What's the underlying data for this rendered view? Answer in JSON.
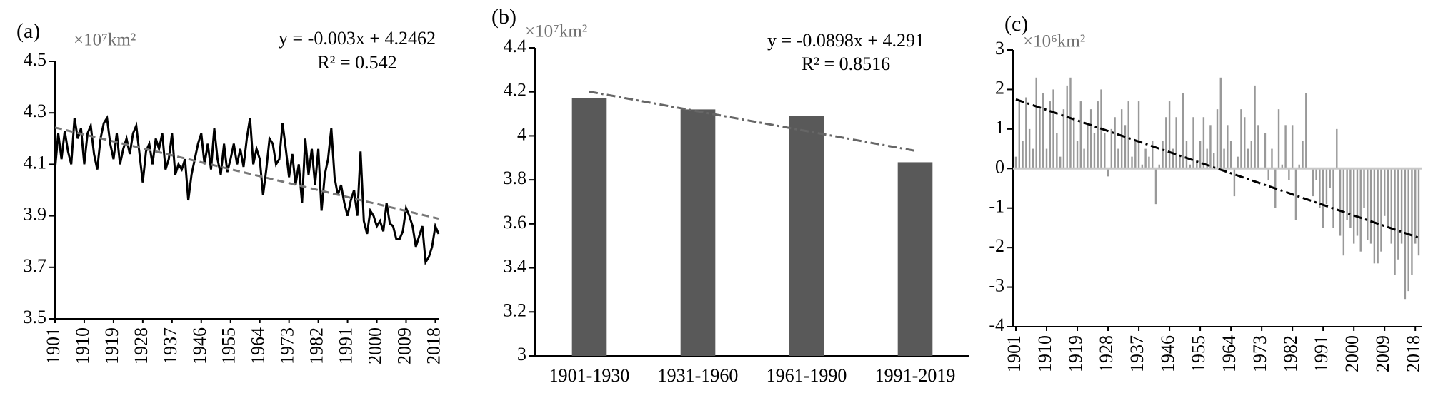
{
  "chart_data": [
    {
      "type": "line",
      "label": "(a)",
      "unit": "×10⁷km²",
      "equation": "y = -0.003x + 4.2462",
      "r_squared": "R² = 0.542",
      "x": [
        1901,
        1902,
        1903,
        1904,
        1905,
        1906,
        1907,
        1908,
        1909,
        1910,
        1911,
        1912,
        1913,
        1914,
        1915,
        1916,
        1917,
        1918,
        1919,
        1920,
        1921,
        1922,
        1923,
        1924,
        1925,
        1926,
        1927,
        1928,
        1929,
        1930,
        1931,
        1932,
        1933,
        1934,
        1935,
        1936,
        1937,
        1938,
        1939,
        1940,
        1941,
        1942,
        1943,
        1944,
        1945,
        1946,
        1947,
        1948,
        1949,
        1950,
        1951,
        1952,
        1953,
        1954,
        1955,
        1956,
        1957,
        1958,
        1959,
        1960,
        1961,
        1962,
        1963,
        1964,
        1965,
        1966,
        1967,
        1968,
        1969,
        1970,
        1971,
        1972,
        1973,
        1974,
        1975,
        1976,
        1977,
        1978,
        1979,
        1980,
        1981,
        1982,
        1983,
        1984,
        1985,
        1986,
        1987,
        1988,
        1989,
        1990,
        1991,
        1992,
        1993,
        1994,
        1995,
        1996,
        1997,
        1998,
        1999,
        2000,
        2001,
        2002,
        2003,
        2004,
        2005,
        2006,
        2007,
        2008,
        2009,
        2010,
        2011,
        2012,
        2013,
        2014,
        2015,
        2016,
        2017,
        2018,
        2019
      ],
      "values": [
        4.08,
        4.22,
        4.12,
        4.23,
        4.15,
        4.1,
        4.28,
        4.2,
        4.24,
        4.1,
        4.22,
        4.25,
        4.14,
        4.08,
        4.2,
        4.26,
        4.28,
        4.18,
        4.12,
        4.22,
        4.1,
        4.16,
        4.2,
        4.14,
        4.22,
        4.25,
        4.14,
        4.03,
        4.15,
        4.18,
        4.1,
        4.2,
        4.16,
        4.22,
        4.08,
        4.12,
        4.22,
        4.06,
        4.1,
        4.08,
        4.12,
        3.96,
        4.06,
        4.12,
        4.18,
        4.22,
        4.1,
        4.18,
        4.08,
        4.24,
        4.12,
        4.06,
        4.18,
        4.07,
        4.12,
        4.18,
        4.1,
        4.16,
        4.09,
        4.2,
        4.28,
        4.1,
        4.16,
        4.12,
        3.98,
        4.08,
        4.2,
        4.18,
        4.1,
        4.12,
        4.26,
        4.16,
        4.05,
        4.14,
        4.02,
        4.1,
        3.95,
        4.2,
        4.06,
        4.16,
        4.02,
        4.16,
        3.92,
        4.06,
        4.12,
        4.24,
        4.05,
        3.98,
        4.02,
        3.95,
        3.9,
        3.96,
        4.0,
        3.9,
        4.15,
        3.88,
        3.83,
        3.92,
        3.9,
        3.86,
        3.88,
        3.84,
        3.95,
        3.87,
        3.86,
        3.81,
        3.81,
        3.84,
        3.93,
        3.9,
        3.86,
        3.78,
        3.82,
        3.86,
        3.72,
        3.74,
        3.78,
        3.86,
        3.83
      ],
      "color": "#000000",
      "trendline": {
        "start": 4.243,
        "end": 3.889,
        "color": "#777777"
      },
      "xlim": [
        1901,
        2019
      ],
      "xticks": [
        1901,
        1910,
        1919,
        1928,
        1937,
        1946,
        1955,
        1964,
        1973,
        1982,
        1991,
        2000,
        2009,
        2018
      ],
      "ylim": [
        3.5,
        4.5
      ],
      "yticks": [
        3.5,
        3.7,
        3.9,
        4.1,
        4.3,
        4.5
      ]
    },
    {
      "type": "bar",
      "label": "(b)",
      "unit": "×10⁷km²",
      "equation": "y = -0.0898x + 4.291",
      "r_squared": "R² = 0.8516",
      "categories": [
        "1901-1930",
        "1931-1960",
        "1961-1990",
        "1991-2019"
      ],
      "values": [
        4.17,
        4.12,
        4.09,
        3.88
      ],
      "color": "#595959",
      "trendline": {
        "start": 4.201,
        "end": 3.932,
        "color": "#666666"
      },
      "ylim": [
        3,
        4.4
      ],
      "yticks": [
        3,
        3.2,
        3.4,
        3.6,
        3.8,
        4,
        4.2,
        4.4
      ]
    },
    {
      "type": "bar",
      "label": "(c)",
      "unit": "×10⁶km²",
      "x": [
        1901,
        1902,
        1903,
        1904,
        1905,
        1906,
        1907,
        1908,
        1909,
        1910,
        1911,
        1912,
        1913,
        1914,
        1915,
        1916,
        1917,
        1918,
        1919,
        1920,
        1921,
        1922,
        1923,
        1924,
        1925,
        1926,
        1927,
        1928,
        1929,
        1930,
        1931,
        1932,
        1933,
        1934,
        1935,
        1936,
        1937,
        1938,
        1939,
        1940,
        1941,
        1942,
        1943,
        1944,
        1945,
        1946,
        1947,
        1948,
        1949,
        1950,
        1951,
        1952,
        1953,
        1954,
        1955,
        1956,
        1957,
        1958,
        1959,
        1960,
        1961,
        1962,
        1963,
        1964,
        1965,
        1966,
        1967,
        1968,
        1969,
        1970,
        1971,
        1972,
        1973,
        1974,
        1975,
        1976,
        1977,
        1978,
        1979,
        1980,
        1981,
        1982,
        1983,
        1984,
        1985,
        1986,
        1987,
        1988,
        1989,
        1990,
        1991,
        1992,
        1993,
        1994,
        1995,
        1996,
        1997,
        1998,
        1999,
        2000,
        2001,
        2002,
        2003,
        2004,
        2005,
        2006,
        2007,
        2008,
        2009,
        2010,
        2011,
        2012,
        2013,
        2014,
        2015,
        2016,
        2017,
        2018,
        2019
      ],
      "values": [
        0.3,
        1.7,
        0.7,
        1.8,
        1.0,
        0.5,
        2.3,
        1.5,
        1.9,
        0.5,
        1.7,
        2.0,
        0.9,
        0.3,
        1.5,
        2.1,
        2.3,
        1.3,
        0.7,
        1.7,
        0.5,
        1.1,
        1.5,
        0.9,
        1.7,
        2.0,
        0.9,
        -0.2,
        1.0,
        1.3,
        0.5,
        1.5,
        1.1,
        1.7,
        0.3,
        0.7,
        1.7,
        0.1,
        0.5,
        0.3,
        0.7,
        -0.9,
        0.1,
        0.7,
        1.3,
        1.7,
        0.5,
        1.3,
        0.3,
        1.9,
        0.7,
        0.1,
        1.3,
        0.2,
        0.7,
        1.3,
        0.5,
        1.1,
        0.4,
        1.5,
        2.3,
        0.5,
        1.1,
        0.7,
        -0.7,
        0.3,
        1.5,
        1.3,
        0.5,
        0.7,
        2.1,
        1.1,
        0.0,
        0.9,
        -0.3,
        0.5,
        -1.0,
        1.5,
        0.1,
        1.1,
        -0.3,
        1.1,
        -1.3,
        0.1,
        0.7,
        1.9,
        0.0,
        -0.7,
        -0.3,
        -1.0,
        -1.5,
        -0.9,
        -0.5,
        -1.5,
        1.0,
        -1.7,
        -2.2,
        -1.3,
        -1.5,
        -1.9,
        -1.7,
        -2.1,
        -1.0,
        -1.8,
        -1.9,
        -2.4,
        -2.4,
        -2.1,
        -1.2,
        -1.5,
        -1.9,
        -2.7,
        -2.3,
        -1.9,
        -3.3,
        -3.1,
        -2.7,
        -1.9,
        -2.2
      ],
      "color": "#999999",
      "trendline": {
        "start": 1.75,
        "end": -1.75,
        "color": "#000000"
      },
      "xlim": [
        1901,
        2019
      ],
      "xticks": [
        1901,
        1910,
        1919,
        1928,
        1937,
        1946,
        1955,
        1964,
        1973,
        1982,
        1991,
        2000,
        2009,
        2018
      ],
      "ylim": [
        -4,
        3
      ],
      "yticks": [
        -4,
        -3,
        -2,
        -1,
        0,
        1,
        2,
        3
      ]
    }
  ]
}
